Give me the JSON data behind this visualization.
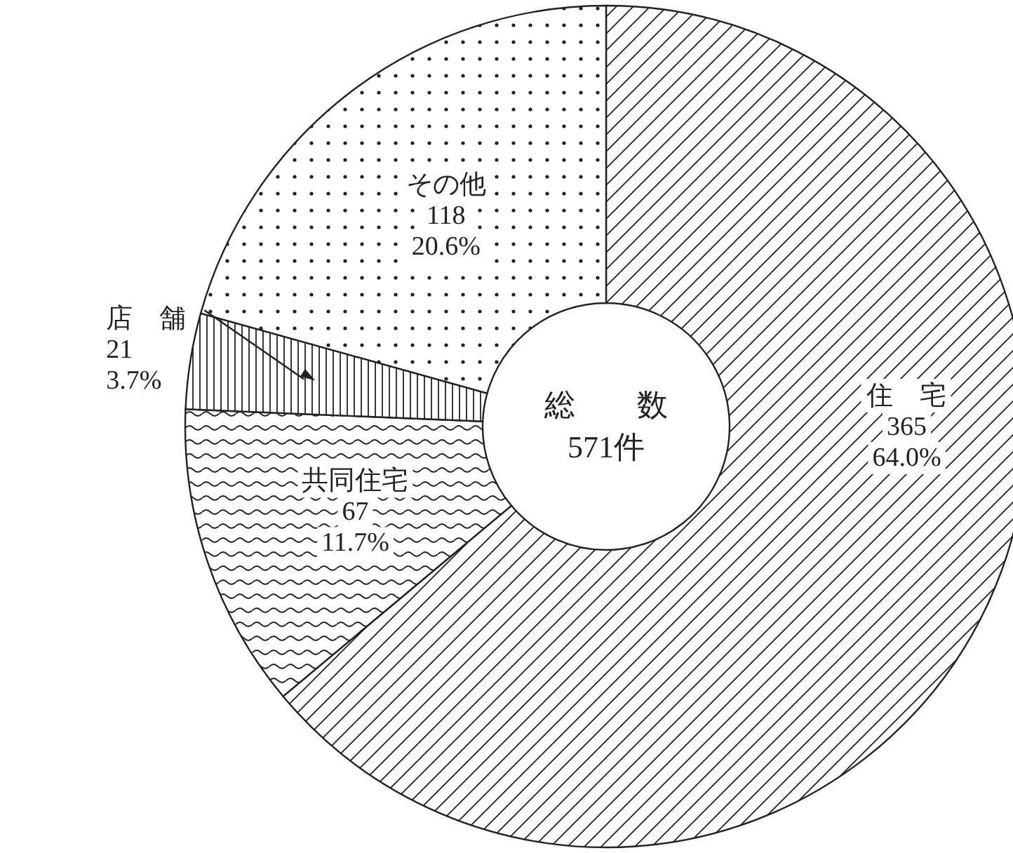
{
  "chart_data": {
    "type": "donut",
    "categories": [
      "住　宅",
      "共同住宅",
      "店　舗",
      "その他"
    ],
    "values": [
      365,
      67,
      21,
      118
    ],
    "value_labels": [
      "365\n64.0%",
      "67\n11.7%",
      "21\n3.7%",
      "118\n20.6%"
    ],
    "colors": [
      "#222222",
      "#222222",
      "#222222",
      "#222222"
    ],
    "annotations": [
      "総　　数",
      "571件"
    ]
  }
}
